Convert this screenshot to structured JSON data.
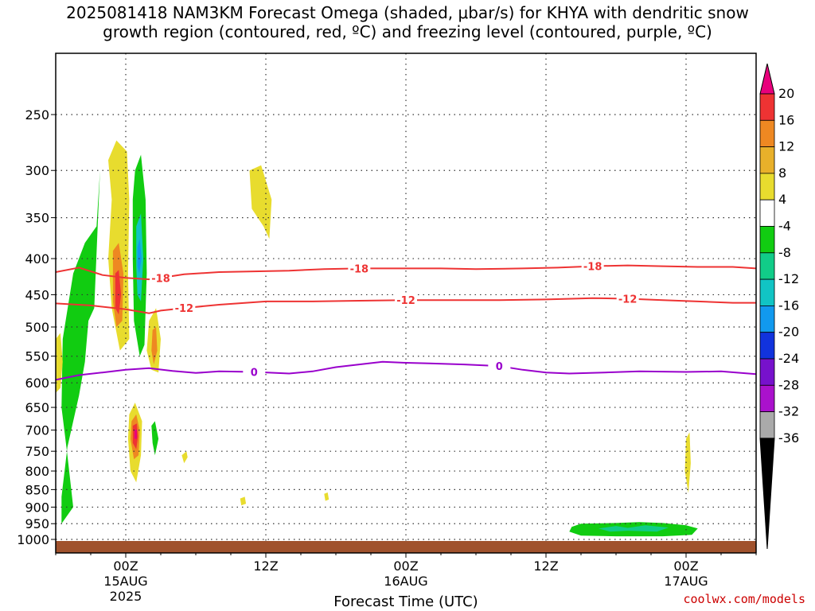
{
  "title_line1": "2025081418 NAM3KM Forecast Omega (shaded, μbar/s) for KHYA with dendritic snow",
  "title_line2": "growth region (contoured, red, ºC) and freezing level (contoured, purple, ºC)",
  "credit": "coolwx.com/models",
  "chart_data": {
    "type": "heatmap",
    "title": "2025081418 NAM3KM Forecast Omega (shaded, μbar/s) for KHYA with dendritic snow growth region (contoured, red, ºC) and freezing level (contoured, purple, ºC)",
    "xlabel": "Forecast Time (UTC)",
    "ylabel": "",
    "y_axis": {
      "scale": "pressure (log)",
      "reversed": true,
      "ticks": [
        250,
        300,
        350,
        400,
        450,
        500,
        550,
        600,
        650,
        700,
        750,
        800,
        850,
        900,
        950,
        1000
      ]
    },
    "x_axis": {
      "range_hours_from_start": [
        0,
        60
      ],
      "ticks": [
        {
          "hour": 6,
          "label": "00Z",
          "sub1": "15AUG",
          "sub2": "2025"
        },
        {
          "hour": 18,
          "label": "12Z",
          "sub1": "",
          "sub2": ""
        },
        {
          "hour": 30,
          "label": "00Z",
          "sub1": "16AUG",
          "sub2": ""
        },
        {
          "hour": 42,
          "label": "12Z",
          "sub1": "",
          "sub2": ""
        },
        {
          "hour": 54,
          "label": "00Z",
          "sub1": "17AUG",
          "sub2": ""
        }
      ]
    },
    "grid": true,
    "colorbar": {
      "labels": [
        "20",
        "16",
        "12",
        "8",
        "4",
        "-4",
        "-8",
        "-12",
        "-16",
        "-20",
        "-24",
        "-28",
        "-32",
        "-36"
      ],
      "colors": [
        "#e8007c",
        "#ee3333",
        "#ee8822",
        "#e8b02a",
        "#e8dc2e",
        "#ffffff",
        "#11cc11",
        "#11cc88",
        "#11c4c4",
        "#1199ee",
        "#1133dd",
        "#7711cc",
        "#aa11cc",
        "#aaaaaa"
      ]
    },
    "contours": [
      {
        "color": "#ee3333",
        "level": "-18",
        "labels": [
          "-18",
          "-18",
          "-18"
        ],
        "points": [
          [
            0,
            418
          ],
          [
            2,
            412
          ],
          [
            4,
            422
          ],
          [
            6,
            426
          ],
          [
            8,
            428
          ],
          [
            9,
            426
          ],
          [
            11,
            421
          ],
          [
            14,
            418
          ],
          [
            17,
            417
          ],
          [
            20,
            416
          ],
          [
            23,
            414
          ],
          [
            26,
            413
          ],
          [
            29,
            413
          ],
          [
            33,
            413
          ],
          [
            36,
            414
          ],
          [
            40,
            413
          ],
          [
            43,
            412
          ],
          [
            46,
            410
          ],
          [
            49,
            409
          ],
          [
            52,
            410
          ],
          [
            55,
            411
          ],
          [
            58,
            411
          ],
          [
            60,
            413
          ]
        ]
      },
      {
        "color": "#ee3333",
        "level": "-12",
        "labels": [
          "-12",
          "-12",
          "-12"
        ],
        "points": [
          [
            0,
            463
          ],
          [
            3,
            466
          ],
          [
            6,
            472
          ],
          [
            8,
            478
          ],
          [
            9,
            474
          ],
          [
            11,
            470
          ],
          [
            14,
            465
          ],
          [
            18,
            460
          ],
          [
            22,
            460
          ],
          [
            26,
            459
          ],
          [
            30,
            458
          ],
          [
            34,
            458
          ],
          [
            38,
            458
          ],
          [
            42,
            457
          ],
          [
            46,
            455
          ],
          [
            49,
            456
          ],
          [
            52,
            458
          ],
          [
            55,
            460
          ],
          [
            58,
            462
          ],
          [
            60,
            462
          ]
        ]
      },
      {
        "color": "#9900cc",
        "level": "0",
        "labels": [
          "0",
          "0"
        ],
        "points": [
          [
            0,
            594
          ],
          [
            2,
            585
          ],
          [
            4,
            580
          ],
          [
            6,
            575
          ],
          [
            8,
            572
          ],
          [
            10,
            577
          ],
          [
            12,
            581
          ],
          [
            14,
            578
          ],
          [
            17,
            579
          ],
          [
            20,
            582
          ],
          [
            22,
            578
          ],
          [
            24,
            570
          ],
          [
            26,
            565
          ],
          [
            28,
            560
          ],
          [
            30,
            562
          ],
          [
            32,
            563
          ],
          [
            35,
            565
          ],
          [
            38,
            568
          ],
          [
            40,
            575
          ],
          [
            42,
            580
          ],
          [
            44,
            582
          ],
          [
            47,
            580
          ],
          [
            50,
            578
          ],
          [
            54,
            579
          ],
          [
            57,
            578
          ],
          [
            60,
            583
          ]
        ]
      }
    ],
    "shaded_regions": [
      {
        "color": "#11cc11",
        "value": "-4 to -8",
        "points": [
          [
            0.5,
            940
          ],
          [
            0.5,
            870
          ],
          [
            1,
            740
          ],
          [
            2,
            625
          ],
          [
            2.5,
            560
          ],
          [
            2.8,
            490
          ],
          [
            3.3,
            470
          ],
          [
            3.8,
            300
          ],
          [
            3.5,
            360
          ],
          [
            2.5,
            380
          ],
          [
            1.5,
            420
          ],
          [
            0.6,
            520
          ],
          [
            0.5,
            650
          ],
          [
            1,
            760
          ],
          [
            1.5,
            900
          ],
          [
            0.5,
            950
          ]
        ]
      },
      {
        "color": "#e8dc2e",
        "value": "4 to 8",
        "points": [
          [
            4.5,
            290
          ],
          [
            5.2,
            272
          ],
          [
            6.1,
            282
          ],
          [
            6.3,
            330
          ],
          [
            6.2,
            420
          ],
          [
            6.3,
            520
          ],
          [
            5.5,
            540
          ],
          [
            4.8,
            470
          ],
          [
            4.5,
            400
          ],
          [
            4.8,
            330
          ]
        ]
      },
      {
        "color": "#11cc11",
        "value": "-4 to -8",
        "points": [
          [
            6.8,
            300
          ],
          [
            7.3,
            285
          ],
          [
            7.7,
            330
          ],
          [
            7.8,
            420
          ],
          [
            7.6,
            530
          ],
          [
            7.2,
            550
          ],
          [
            6.7,
            490
          ],
          [
            6.6,
            400
          ],
          [
            6.6,
            330
          ]
        ]
      },
      {
        "color": "#11c4c4",
        "value": "-12 to -16",
        "points": [
          [
            6.9,
            360
          ],
          [
            7.3,
            345
          ],
          [
            7.5,
            400
          ],
          [
            7.3,
            460
          ],
          [
            7.0,
            450
          ],
          [
            6.9,
            410
          ]
        ]
      },
      {
        "color": "#1199ee",
        "value": "-16 to -20",
        "points": [
          [
            7.0,
            385
          ],
          [
            7.2,
            375
          ],
          [
            7.35,
            400
          ],
          [
            7.15,
            420
          ],
          [
            7.0,
            410
          ]
        ]
      },
      {
        "color": "#ee8822",
        "value": "8 to 12",
        "points": [
          [
            4.9,
            390
          ],
          [
            5.4,
            380
          ],
          [
            5.8,
            420
          ],
          [
            5.7,
            490
          ],
          [
            5.2,
            500
          ],
          [
            4.9,
            460
          ]
        ]
      },
      {
        "color": "#ee3333",
        "value": "12 to 16",
        "points": [
          [
            5.1,
            420
          ],
          [
            5.4,
            415
          ],
          [
            5.6,
            450
          ],
          [
            5.4,
            480
          ],
          [
            5.1,
            470
          ]
        ]
      },
      {
        "color": "#e8dc2e",
        "value": "4 to 8",
        "points": [
          [
            8.0,
            490
          ],
          [
            8.6,
            470
          ],
          [
            9.0,
            520
          ],
          [
            8.8,
            580
          ],
          [
            8.2,
            575
          ],
          [
            7.8,
            540
          ]
        ]
      },
      {
        "color": "#ee8822",
        "value": "8 to 12",
        "points": [
          [
            8.3,
            505
          ],
          [
            8.6,
            500
          ],
          [
            8.7,
            540
          ],
          [
            8.4,
            565
          ],
          [
            8.2,
            540
          ]
        ]
      },
      {
        "color": "#e8dc2e",
        "value": "4 to 8",
        "points": [
          [
            6.3,
            665
          ],
          [
            6.8,
            640
          ],
          [
            7.4,
            680
          ],
          [
            7.3,
            760
          ],
          [
            6.9,
            830
          ],
          [
            6.4,
            800
          ],
          [
            6.2,
            720
          ]
        ]
      },
      {
        "color": "#ee8822",
        "value": "8 to 12",
        "points": [
          [
            6.5,
            680
          ],
          [
            6.9,
            665
          ],
          [
            7.2,
            700
          ],
          [
            7.1,
            760
          ],
          [
            6.7,
            770
          ],
          [
            6.4,
            720
          ]
        ]
      },
      {
        "color": "#ee3333",
        "value": "12 to 16",
        "points": [
          [
            6.6,
            690
          ],
          [
            6.95,
            685
          ],
          [
            7.05,
            715
          ],
          [
            6.9,
            745
          ],
          [
            6.6,
            730
          ]
        ]
      },
      {
        "color": "#e8007c",
        "value": "16 to 20",
        "points": [
          [
            6.75,
            700
          ],
          [
            6.95,
            698
          ],
          [
            6.95,
            720
          ],
          [
            6.75,
            720
          ]
        ]
      },
      {
        "color": "#11cc11",
        "value": "-4 to -8",
        "points": [
          [
            8.2,
            690
          ],
          [
            8.5,
            680
          ],
          [
            8.8,
            720
          ],
          [
            8.5,
            760
          ],
          [
            8.3,
            730
          ]
        ]
      },
      {
        "color": "#e8dc2e",
        "value": "4 to 8",
        "points": [
          [
            0,
            520
          ],
          [
            0.4,
            510
          ],
          [
            0.6,
            560
          ],
          [
            0.4,
            610
          ],
          [
            0,
            620
          ]
        ]
      },
      {
        "color": "#e8dc2e",
        "value": "4 to 8",
        "points": [
          [
            16.6,
            300
          ],
          [
            17.6,
            295
          ],
          [
            18.5,
            330
          ],
          [
            18.3,
            375
          ],
          [
            17.8,
            360
          ],
          [
            16.8,
            340
          ]
        ]
      },
      {
        "color": "#e8dc2e",
        "value": "4 to 8",
        "points": [
          [
            10.8,
            760
          ],
          [
            11.2,
            750
          ],
          [
            11.3,
            765
          ],
          [
            11.0,
            780
          ]
        ]
      },
      {
        "color": "#e8dc2e",
        "value": "4 to 8",
        "points": [
          [
            15.8,
            875
          ],
          [
            16.2,
            870
          ],
          [
            16.3,
            890
          ],
          [
            15.9,
            895
          ]
        ]
      },
      {
        "color": "#e8dc2e",
        "value": "4 to 8",
        "points": [
          [
            23.0,
            862
          ],
          [
            23.3,
            858
          ],
          [
            23.4,
            878
          ],
          [
            23.1,
            882
          ]
        ]
      },
      {
        "color": "#e8dc2e",
        "value": "4 to 8",
        "points": [
          [
            54.0,
            720
          ],
          [
            54.3,
            705
          ],
          [
            54.4,
            780
          ],
          [
            54.2,
            860
          ],
          [
            53.9,
            800
          ]
        ]
      },
      {
        "color": "#11cc11",
        "value": "-4 to -8",
        "points": [
          [
            44.2,
            960
          ],
          [
            45,
            950
          ],
          [
            48,
            948
          ],
          [
            50,
            945
          ],
          [
            52,
            948
          ],
          [
            54,
            955
          ],
          [
            55,
            965
          ],
          [
            54.5,
            985
          ],
          [
            52,
            990
          ],
          [
            48,
            990
          ],
          [
            45,
            988
          ],
          [
            44,
            975
          ]
        ]
      },
      {
        "color": "#11cc88",
        "value": "-8 to -12",
        "points": [
          [
            46.5,
            965
          ],
          [
            48,
            957
          ],
          [
            49,
            963
          ],
          [
            50.5,
            955
          ],
          [
            52.5,
            962
          ],
          [
            51.5,
            975
          ],
          [
            49,
            972
          ],
          [
            47.5,
            975
          ]
        ]
      }
    ],
    "terrain_color": "#a0522d"
  }
}
